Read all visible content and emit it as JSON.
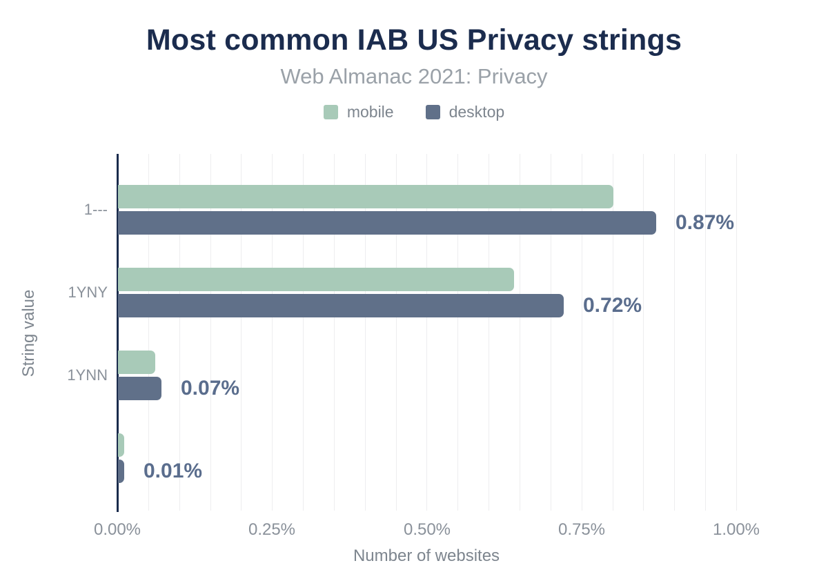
{
  "header": {
    "title": "Most common IAB US Privacy strings",
    "subtitle": "Web Almanac 2021: Privacy"
  },
  "colors": {
    "title": "#1b2c4e",
    "subtitle": "#9aa1a8",
    "legend_text": "#7d858e",
    "axis_title_text": "#7d858e",
    "tick_label_text": "#8a919a",
    "value_label_text": "#5a6d8d",
    "axis_line": "#1a2b4c",
    "gridline": "#ededef",
    "mobile": "#a8cab8",
    "desktop": "#607089"
  },
  "chart_data": {
    "type": "bar",
    "orientation": "horizontal",
    "title": "Most common IAB US Privacy strings",
    "subtitle": "Web Almanac 2021: Privacy",
    "categories": [
      "1---",
      "1YNY",
      "1YNN",
      ""
    ],
    "series": [
      {
        "name": "mobile",
        "color": "#a8cab8",
        "values": [
          0.8,
          0.64,
          0.06,
          0.01
        ]
      },
      {
        "name": "desktop",
        "color": "#607089",
        "values": [
          0.87,
          0.72,
          0.07,
          0.01
        ]
      }
    ],
    "value_labels": [
      "0.87%",
      "0.72%",
      "0.07%",
      "0.01%"
    ],
    "value_label_series": "desktop",
    "xlabel": "Number of websites",
    "ylabel": "String value",
    "x_ticks": [
      {
        "value": 0.0,
        "label": "0.00%"
      },
      {
        "value": 0.25,
        "label": "0.25%"
      },
      {
        "value": 0.5,
        "label": "0.50%"
      },
      {
        "value": 0.75,
        "label": "0.75%"
      },
      {
        "value": 1.0,
        "label": "1.00%"
      }
    ],
    "xlim": [
      0,
      1.0
    ],
    "minor_gridline_step": 0.05,
    "grid": "vertical",
    "legend_position": "top"
  }
}
